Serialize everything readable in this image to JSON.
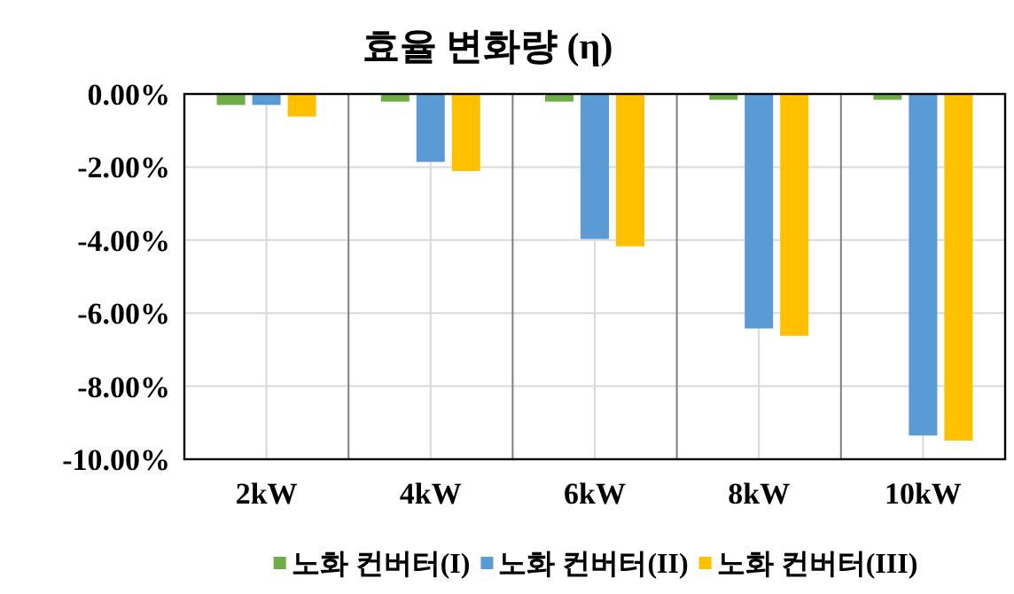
{
  "chart_data": {
    "type": "bar",
    "title": "효율 변화량 (η)",
    "categories": [
      "2kW",
      "4kW",
      "6kW",
      "8kW",
      "10kW"
    ],
    "series": [
      {
        "name": "노화 컨버터(I)",
        "color": "#70ad47",
        "values": [
          -0.3,
          -0.21,
          -0.21,
          -0.16,
          -0.16
        ]
      },
      {
        "name": "노화 컨버터(II)",
        "color": "#5b9bd5",
        "values": [
          -0.3,
          -1.86,
          -3.97,
          -6.42,
          -9.35
        ]
      },
      {
        "name": "노화 컨버터(III)",
        "color": "#ffc000",
        "values": [
          -0.62,
          -2.11,
          -4.17,
          -6.62,
          -9.49
        ]
      }
    ],
    "ylim": [
      -10,
      0
    ],
    "yticks": [
      {
        "value": 0,
        "label": "0.00%"
      },
      {
        "value": -2,
        "label": "-2.00%"
      },
      {
        "value": -4,
        "label": "-4.00%"
      },
      {
        "value": -6,
        "label": "-6.00%"
      },
      {
        "value": -8,
        "label": "-8.00%"
      },
      {
        "value": -10,
        "label": "-10.00%"
      }
    ],
    "grid": true,
    "legend": "bottom"
  }
}
